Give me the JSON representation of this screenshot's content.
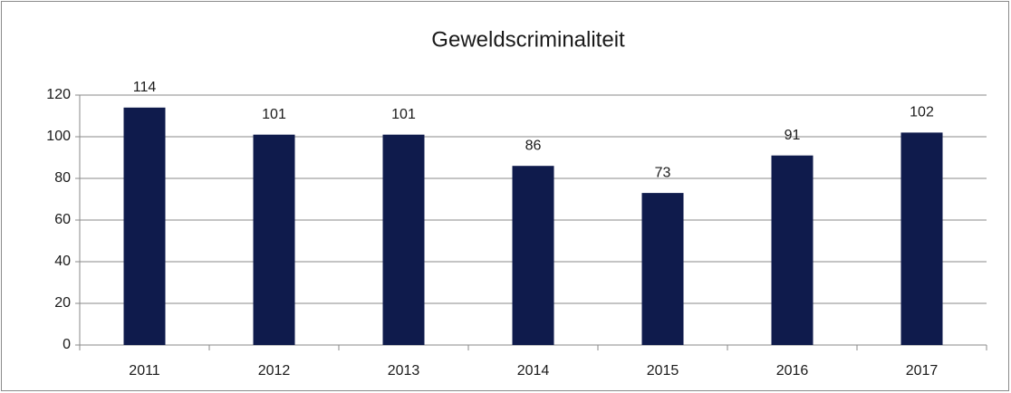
{
  "chart_data": {
    "type": "bar",
    "title": "Geweldscriminaliteit",
    "categories": [
      "2011",
      "2012",
      "2013",
      "2014",
      "2015",
      "2016",
      "2017"
    ],
    "values": [
      114,
      101,
      101,
      86,
      73,
      91,
      102
    ],
    "color": "#0f1b4c",
    "ylim": [
      0,
      120
    ],
    "yticks": [
      0,
      20,
      40,
      60,
      80,
      100,
      120
    ],
    "grid": true
  }
}
